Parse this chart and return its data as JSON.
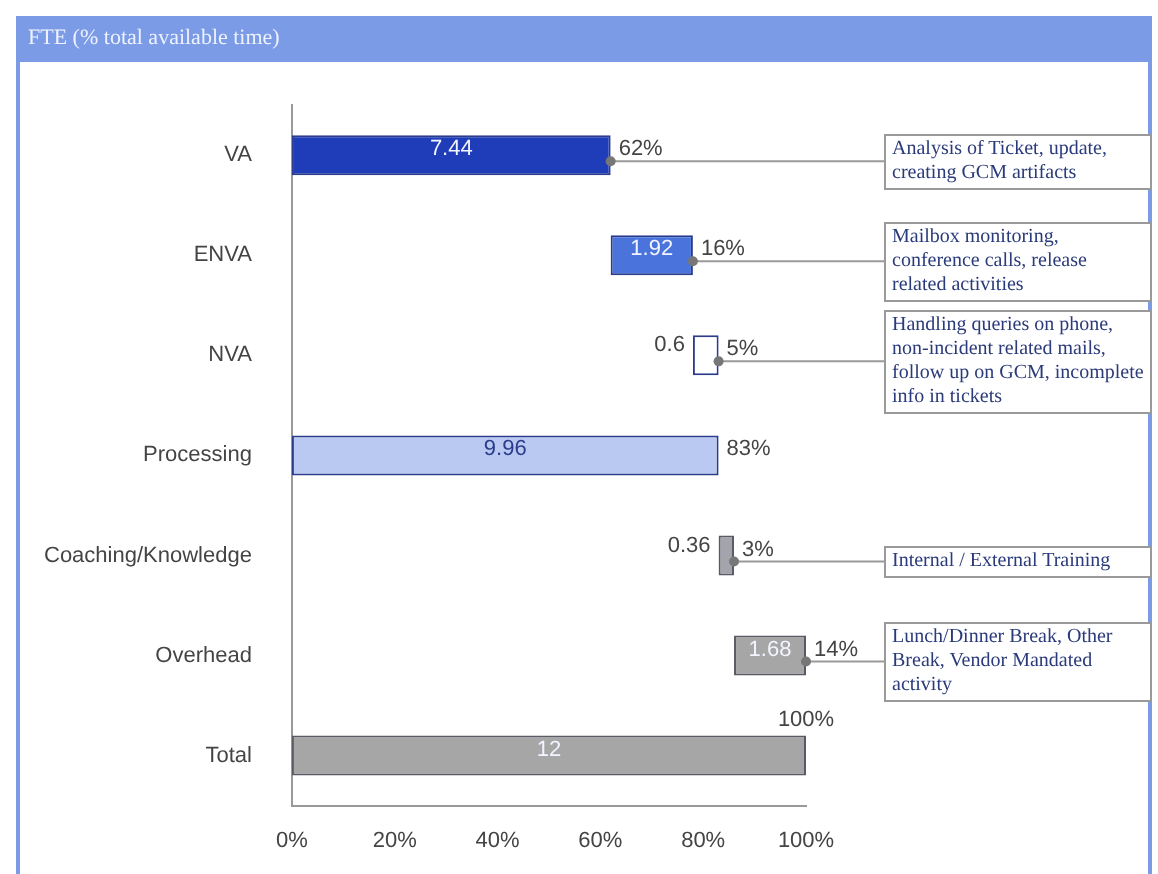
{
  "chart_data": {
    "type": "bar",
    "orientation": "horizontal",
    "title": "FTE (% total available time)",
    "categories": [
      "VA",
      "ENVA",
      "NVA",
      "Processing",
      "Coaching/Knowledge",
      "Overhead",
      "Total"
    ],
    "values": [
      62,
      16,
      5,
      83,
      3,
      14,
      100
    ],
    "base": [
      0,
      62,
      78,
      0,
      83,
      86,
      0
    ],
    "colors": [
      "#1f3db8",
      "#4a74dc",
      "#ffffff",
      "#b9c9f2",
      "#a4a4ac",
      "#a6a6a6",
      "#a6a6a6"
    ],
    "value_labels": [
      "62%",
      "16%",
      "5%",
      "83%",
      "3%",
      "14%",
      "100%"
    ],
    "xlim": [
      0,
      100
    ],
    "xticks": [
      {
        "value": 0,
        "label": "0%"
      },
      {
        "value": 20,
        "label": "20%"
      },
      {
        "value": 40,
        "label": "40%"
      },
      {
        "value": 60,
        "label": "60%"
      },
      {
        "value": 80,
        "label": "80%"
      },
      {
        "value": 100,
        "label": "100%"
      }
    ],
    "grid": false,
    "legend": false,
    "annotations": [
      "7.44",
      "1.92",
      "0.6",
      "9.96",
      "0.36",
      "1.68",
      "12",
      {
        "text": "Analysis of Ticket, update, creating GCM artifacts",
        "x": 62,
        "y": "VA"
      },
      {
        "text": "Mailbox monitoring, conference calls, release related activities",
        "x": 78,
        "y": "ENVA"
      },
      {
        "text": "Handling queries on phone, non-incident related mails, follow up on GCM, incomplete info in tickets",
        "x": 83,
        "y": "NVA"
      },
      {
        "text": "Internal / External Training",
        "x": 86,
        "y": "Coaching/Knowledge"
      },
      {
        "text": "Lunch/Dinner Break, Other Break, Vendor Mandated activity",
        "x": 100,
        "y": "Overhead"
      }
    ]
  }
}
